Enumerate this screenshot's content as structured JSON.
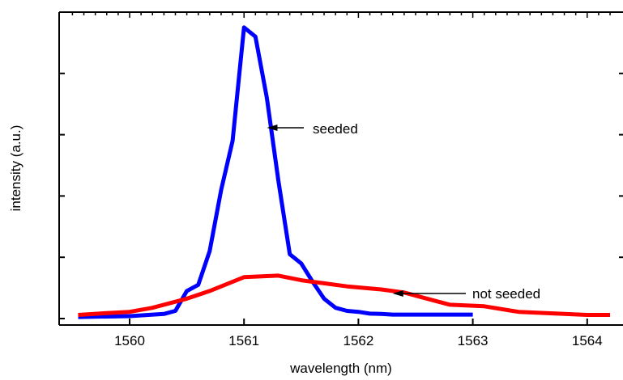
{
  "chart_data": {
    "type": "line",
    "title": "",
    "xlabel": "wavelength (nm)",
    "ylabel": "intensity (a.u.)",
    "xlim": [
      1559.5,
      1564.2
    ],
    "ylim": [
      0,
      1.0
    ],
    "x_ticks": [
      1560,
      1561,
      1562,
      1563,
      1564
    ],
    "x_tick_labels": [
      "1560",
      "1561",
      "1562",
      "1563",
      "1564"
    ],
    "grid": false,
    "legend": "none",
    "series": [
      {
        "color": "#0000ff",
        "points": [
          [
            1559.55,
            0.005
          ],
          [
            1560.0,
            0.008
          ],
          [
            1560.3,
            0.015
          ],
          [
            1560.4,
            0.025
          ],
          [
            1560.5,
            0.09
          ],
          [
            1560.6,
            0.11
          ],
          [
            1560.7,
            0.22
          ],
          [
            1560.8,
            0.42
          ],
          [
            1560.9,
            0.58
          ],
          [
            1561.0,
            0.95
          ],
          [
            1561.1,
            0.92
          ],
          [
            1561.2,
            0.72
          ],
          [
            1561.3,
            0.45
          ],
          [
            1561.4,
            0.21
          ],
          [
            1561.5,
            0.18
          ],
          [
            1561.6,
            0.12
          ],
          [
            1561.7,
            0.065
          ],
          [
            1561.8,
            0.035
          ],
          [
            1561.9,
            0.025
          ],
          [
            1562.0,
            0.022
          ],
          [
            1562.1,
            0.016
          ],
          [
            1562.2,
            0.015
          ],
          [
            1562.3,
            0.013
          ],
          [
            1562.5,
            0.013
          ],
          [
            1563.0,
            0.013
          ]
        ]
      },
      {
        "color": "#ff0000",
        "points": [
          [
            1559.55,
            0.012
          ],
          [
            1559.8,
            0.018
          ],
          [
            1560.0,
            0.022
          ],
          [
            1560.2,
            0.035
          ],
          [
            1560.5,
            0.065
          ],
          [
            1560.7,
            0.09
          ],
          [
            1561.0,
            0.135
          ],
          [
            1561.3,
            0.14
          ],
          [
            1561.5,
            0.125
          ],
          [
            1561.7,
            0.115
          ],
          [
            1561.9,
            0.105
          ],
          [
            1562.2,
            0.095
          ],
          [
            1562.4,
            0.085
          ],
          [
            1562.6,
            0.065
          ],
          [
            1562.8,
            0.045
          ],
          [
            1563.1,
            0.04
          ],
          [
            1563.4,
            0.022
          ],
          [
            1563.7,
            0.017
          ],
          [
            1564.0,
            0.012
          ],
          [
            1564.2,
            0.012
          ]
        ]
      }
    ],
    "annotations": [
      {
        "text": "seeded",
        "arrow_to": [
          1561.2,
          0.72
        ]
      },
      {
        "text": "not seeded",
        "arrow_to": [
          1562.3,
          0.092
        ]
      }
    ]
  }
}
